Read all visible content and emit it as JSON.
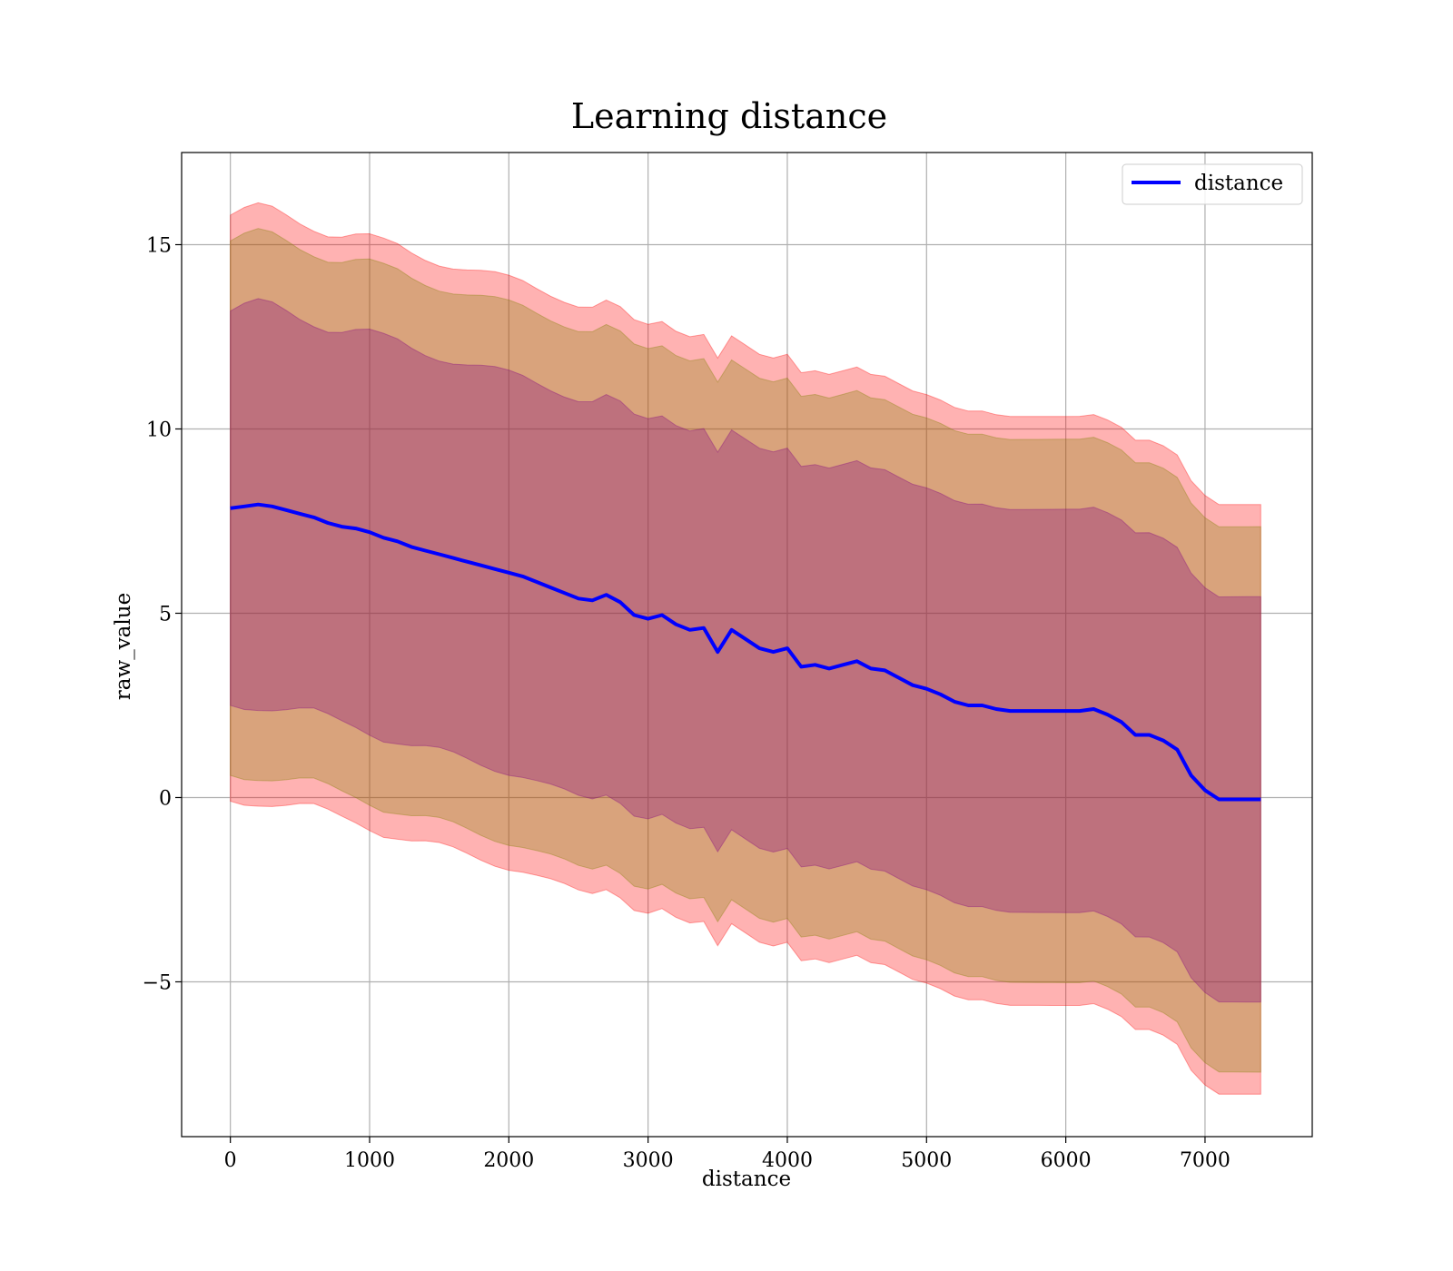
{
  "chart_data": {
    "type": "line",
    "title": "Learning distance",
    "xlabel": "distance",
    "ylabel": "raw_value",
    "xlim": [
      -350,
      7770
    ],
    "ylim": [
      -9.2,
      17.5
    ],
    "x_ticks": [
      0,
      1000,
      2000,
      3000,
      4000,
      5000,
      6000,
      7000
    ],
    "y_ticks": [
      -5,
      0,
      5,
      10,
      15
    ],
    "x_tick_labels": [
      "0",
      "1000",
      "2000",
      "3000",
      "4000",
      "5000",
      "6000",
      "7000"
    ],
    "y_tick_labels": [
      "−5",
      "0",
      "5",
      "10",
      "15"
    ],
    "grid": true,
    "legend": {
      "position": "top-right",
      "entries": [
        "distance"
      ]
    },
    "colors": {
      "line": "#0000ff",
      "band_outer": "#ff0000",
      "band_middle": "#808000",
      "band_inner": "#800080",
      "grid": "#b0b0b0"
    },
    "series": [
      {
        "name": "distance",
        "x": [
          0,
          100,
          200,
          300,
          400,
          500,
          600,
          700,
          800,
          900,
          1000,
          1100,
          1200,
          1300,
          1400,
          1500,
          1600,
          1700,
          1800,
          1900,
          2000,
          2100,
          2200,
          2300,
          2400,
          2500,
          2600,
          2700,
          2800,
          2900,
          3000,
          3100,
          3200,
          3300,
          3400,
          3500,
          3600,
          3700,
          3800,
          3900,
          4000,
          4100,
          4200,
          4300,
          4400,
          4500,
          4600,
          4700,
          4800,
          4900,
          5000,
          5100,
          5200,
          5300,
          5400,
          5500,
          5600,
          5700,
          5800,
          5900,
          6000,
          6100,
          6200,
          6300,
          6400,
          6500,
          6600,
          6700,
          6800,
          6900,
          7000,
          7100,
          7200,
          7300,
          7400
        ],
        "y": [
          7.85,
          7.9,
          7.95,
          7.9,
          7.8,
          7.7,
          7.6,
          7.45,
          7.35,
          7.3,
          7.2,
          7.05,
          6.95,
          6.8,
          6.7,
          6.6,
          6.5,
          6.4,
          6.3,
          6.2,
          6.1,
          6.0,
          5.85,
          5.7,
          5.55,
          5.4,
          5.35,
          5.5,
          5.3,
          4.95,
          4.85,
          4.95,
          4.7,
          4.55,
          4.6,
          3.95,
          4.55,
          4.3,
          4.05,
          3.95,
          4.05,
          3.55,
          3.6,
          3.5,
          3.6,
          3.7,
          3.5,
          3.45,
          3.25,
          3.05,
          2.95,
          2.8,
          2.6,
          2.5,
          2.5,
          2.4,
          2.35,
          2.35,
          2.35,
          2.35,
          2.35,
          2.35,
          2.4,
          2.25,
          2.05,
          1.7,
          1.7,
          1.55,
          1.3,
          0.6,
          0.2,
          -0.05,
          -0.05,
          -0.05,
          -0.05
        ]
      }
    ]
  }
}
